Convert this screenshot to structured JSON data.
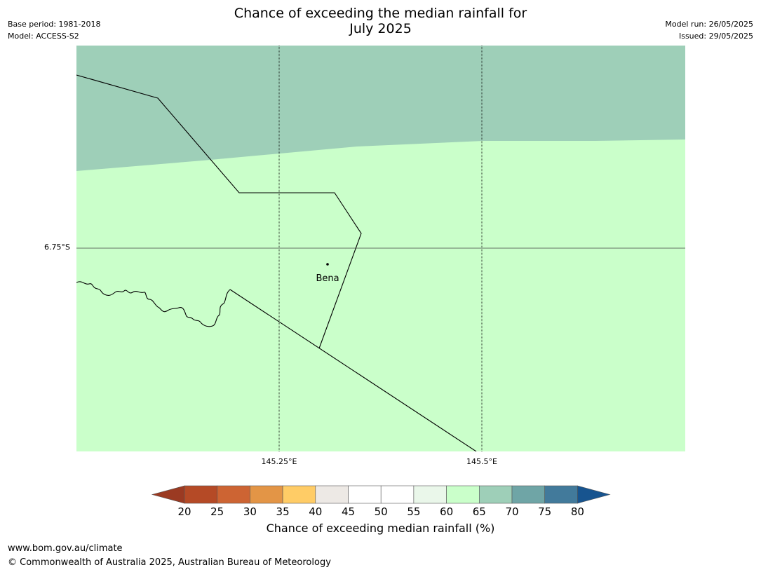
{
  "header": {
    "title_line1": "Chance of exceeding the median rainfall for",
    "title_line2": "July 2025",
    "base_period": "Base period: 1981-2018",
    "model": "Model: ACCESS-S2",
    "model_run": "Model run: 26/05/2025",
    "issued": "Issued: 29/05/2025"
  },
  "map": {
    "place_label": "Bena",
    "lat_gridline_label": "6.75°S",
    "lon_gridline_labels": [
      "145.25°E",
      "145.5°E"
    ],
    "fill_colors": {
      "upper_band": "#9ecfb8",
      "lower_band": "#caffca"
    }
  },
  "colorbar": {
    "tick_labels": [
      "20",
      "25",
      "30",
      "35",
      "40",
      "45",
      "50",
      "55",
      "60",
      "65",
      "70",
      "75",
      "80"
    ],
    "bins": [
      {
        "range": "below 20",
        "color": "#9b3a22"
      },
      {
        "range": "20-25",
        "color": "#b54a26"
      },
      {
        "range": "25-30",
        "color": "#cd6433"
      },
      {
        "range": "30-35",
        "color": "#e39546"
      },
      {
        "range": "35-40",
        "color": "#ffcc66"
      },
      {
        "range": "40-45",
        "color": "#ede9e5"
      },
      {
        "range": "45-50",
        "color": "#ffffff"
      },
      {
        "range": "50-55",
        "color": "#ffffff"
      },
      {
        "range": "55-60",
        "color": "#eaf7ea"
      },
      {
        "range": "60-65",
        "color": "#caffca"
      },
      {
        "range": "65-70",
        "color": "#9ecfb8"
      },
      {
        "range": "70-75",
        "color": "#6fa5a6"
      },
      {
        "range": "75-80",
        "color": "#427a9b"
      },
      {
        "range": "above 80",
        "color": "#17548f"
      }
    ],
    "label": "Chance of exceeding median rainfall (%)"
  },
  "footer": {
    "url": "www.bom.gov.au/climate",
    "copyright": "© Commonwealth of Australia 2025, Australian Bureau of Meteorology"
  }
}
